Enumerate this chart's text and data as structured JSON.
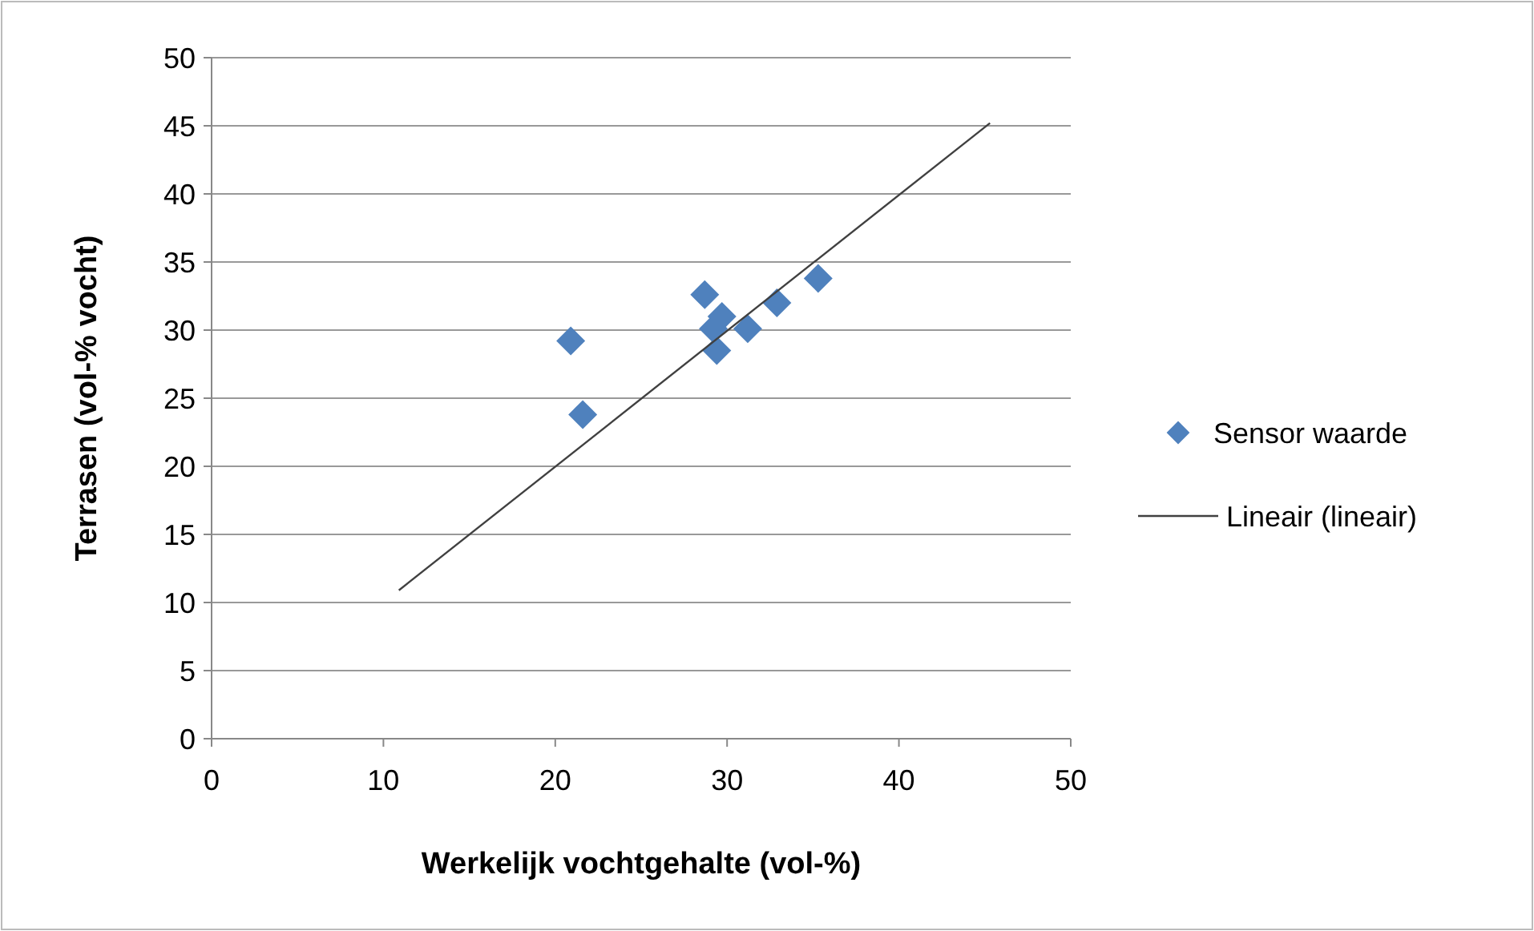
{
  "chart_data": {
    "type": "scatter",
    "xlabel": "Werkelijk vochtgehalte (vol-%)",
    "ylabel": "Terrasen (vol-% vocht)",
    "xlim": [
      0,
      50
    ],
    "ylim": [
      0,
      50
    ],
    "xticks": [
      0,
      10,
      20,
      30,
      40,
      50
    ],
    "yticks": [
      0,
      5,
      10,
      15,
      20,
      25,
      30,
      35,
      40,
      45,
      50
    ],
    "grid": "y",
    "legend": "right",
    "series": [
      {
        "name": "Sensor waarde",
        "color": "#4f81bd",
        "marker": "diamond",
        "x": [
          20.9,
          21.6,
          28.7,
          29.7,
          29.2,
          29.4,
          31.2,
          32.9,
          35.3
        ],
        "values": [
          29.2,
          23.8,
          32.6,
          31.0,
          30.1,
          28.5,
          30.1,
          32.0,
          33.8
        ]
      },
      {
        "name": "Lineair (lineair)",
        "type": "line",
        "color": "#404040",
        "marker": "none",
        "x": [
          10.9,
          45.3
        ],
        "values": [
          10.9,
          45.2
        ]
      }
    ]
  }
}
